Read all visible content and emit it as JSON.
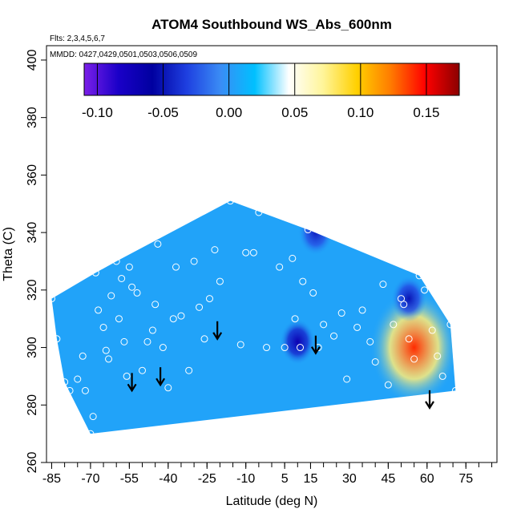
{
  "chart_data": {
    "type": "heatmap",
    "title": "ATOM4 Southbound WS_Abs_600nm",
    "annotations": [
      "Flts: 2,3,4,5,6,7",
      "MMDD: 0427,0429,0501,0503,0506,0509"
    ],
    "xlabel": "Latitude (deg N)",
    "ylabel": "Theta (C)",
    "xlim": [
      -87,
      87
    ],
    "ylim": [
      260,
      405
    ],
    "x_ticks": [
      -85,
      -70,
      -55,
      -40,
      -25,
      -10,
      5,
      15,
      30,
      45,
      60,
      75
    ],
    "x_tick_labels": [
      "-85",
      "-70",
      "-55",
      "-40",
      "-25",
      "-10",
      "5",
      "15",
      "30",
      "45",
      "60",
      "75"
    ],
    "y_ticks": [
      260,
      280,
      300,
      320,
      340,
      360,
      380,
      400
    ],
    "y_tick_labels": [
      "260",
      "280",
      "300",
      "320",
      "340",
      "360",
      "380",
      "400"
    ],
    "colorbar": {
      "range": [
        -0.11,
        0.175
      ],
      "ticks": [
        -0.1,
        -0.05,
        0.0,
        0.05,
        0.1,
        0.15
      ],
      "tick_labels": [
        "-0.10",
        "-0.05",
        "0.00",
        "0.05",
        "0.10",
        "0.15"
      ],
      "colors": [
        "#7b1fe8",
        "#1a00c8",
        "#0000a0",
        "#1e3fe0",
        "#3a8cf5",
        "#00c0ff",
        "#ffffff",
        "#fff59a",
        "#ffd000",
        "#ff7a00",
        "#ff0000",
        "#8b0000"
      ]
    },
    "background_value": 0.005,
    "hotspots": [
      {
        "lat": 55,
        "theta": 300,
        "value": 0.14
      },
      {
        "lat": 10,
        "theta": 302,
        "value": -0.07
      },
      {
        "lat": 53,
        "theta": 317,
        "value": -0.05
      },
      {
        "lat": 17,
        "theta": 340,
        "value": -0.045
      }
    ],
    "arrows": [
      {
        "lat": -54,
        "theta": 285
      },
      {
        "lat": -43,
        "theta": 287
      },
      {
        "lat": -21,
        "theta": 303
      },
      {
        "lat": 17,
        "theta": 298
      },
      {
        "lat": 61,
        "theta": 279
      }
    ],
    "sample_points": [
      [
        -85,
        317
      ],
      [
        -83,
        303
      ],
      [
        -80,
        288
      ],
      [
        -78,
        285
      ],
      [
        -75,
        289
      ],
      [
        -73,
        297
      ],
      [
        -72,
        285
      ],
      [
        -70,
        270
      ],
      [
        -69,
        276
      ],
      [
        -68,
        326
      ],
      [
        -67,
        313
      ],
      [
        -65,
        307
      ],
      [
        -64,
        299
      ],
      [
        -63,
        296
      ],
      [
        -62,
        318
      ],
      [
        -60,
        330
      ],
      [
        -59,
        310
      ],
      [
        -58,
        324
      ],
      [
        -57,
        302
      ],
      [
        -56,
        290
      ],
      [
        -55,
        328
      ],
      [
        -54,
        321
      ],
      [
        -52,
        319
      ],
      [
        -50,
        292
      ],
      [
        -48,
        302
      ],
      [
        -46,
        306
      ],
      [
        -45,
        315
      ],
      [
        -44,
        336
      ],
      [
        -42,
        300
      ],
      [
        -40,
        286
      ],
      [
        -38,
        310
      ],
      [
        -37,
        328
      ],
      [
        -35,
        311
      ],
      [
        -32,
        292
      ],
      [
        -30,
        330
      ],
      [
        -28,
        314
      ],
      [
        -26,
        303
      ],
      [
        -24,
        317
      ],
      [
        -22,
        334
      ],
      [
        -20,
        323
      ],
      [
        -16,
        351
      ],
      [
        -12,
        301
      ],
      [
        -10,
        333
      ],
      [
        -7,
        333
      ],
      [
        -5,
        347
      ],
      [
        -2,
        300
      ],
      [
        3,
        328
      ],
      [
        5,
        300
      ],
      [
        8,
        331
      ],
      [
        9,
        310
      ],
      [
        11,
        300
      ],
      [
        12,
        323
      ],
      [
        14,
        341
      ],
      [
        16,
        319
      ],
      [
        18,
        300
      ],
      [
        20,
        308
      ],
      [
        24,
        304
      ],
      [
        27,
        312
      ],
      [
        29,
        289
      ],
      [
        33,
        307
      ],
      [
        35,
        313
      ],
      [
        38,
        302
      ],
      [
        40,
        295
      ],
      [
        43,
        322
      ],
      [
        45,
        287
      ],
      [
        47,
        308
      ],
      [
        50,
        317
      ],
      [
        51,
        315
      ],
      [
        53,
        303
      ],
      [
        55,
        296
      ],
      [
        57,
        325
      ],
      [
        59,
        320
      ],
      [
        62,
        306
      ],
      [
        64,
        297
      ],
      [
        66,
        290
      ],
      [
        69,
        308
      ],
      [
        71,
        285
      ]
    ]
  }
}
